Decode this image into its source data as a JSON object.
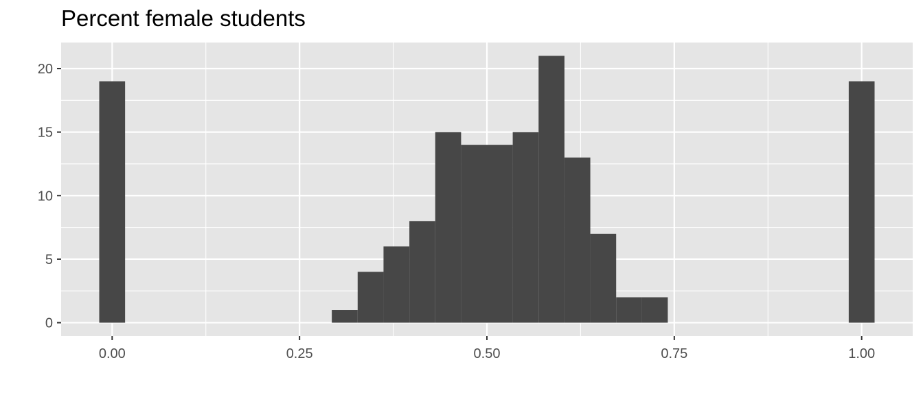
{
  "chart_data": {
    "type": "bar",
    "title": "Percent female students",
    "xlabel": "",
    "ylabel": "",
    "xlim": [
      -0.0681,
      1.0681
    ],
    "ylim": [
      -1.05,
      22.05
    ],
    "x_ticks": [
      "0.00",
      "0.25",
      "0.50",
      "0.75",
      "1.00"
    ],
    "x_tick_values": [
      0,
      0.25,
      0.5,
      0.75,
      1.0
    ],
    "y_ticks": [
      "0",
      "5",
      "10",
      "15",
      "20"
    ],
    "y_tick_values": [
      0,
      5,
      10,
      15,
      20
    ],
    "bin_width": 0.0345,
    "bin_centers": [
      0.0,
      0.3103,
      0.3448,
      0.3793,
      0.4138,
      0.4483,
      0.4828,
      0.5172,
      0.5517,
      0.5862,
      0.6207,
      0.6552,
      0.6897,
      0.7241,
      1.0
    ],
    "values": [
      19,
      1,
      4,
      6,
      8,
      15,
      14,
      14,
      15,
      21,
      13,
      7,
      2,
      2,
      19
    ],
    "grid": true,
    "background": "#e5e5e5",
    "bar_color": "#474747",
    "grid_color": "#ffffff",
    "tick_label_color": "#4d4d4d"
  }
}
